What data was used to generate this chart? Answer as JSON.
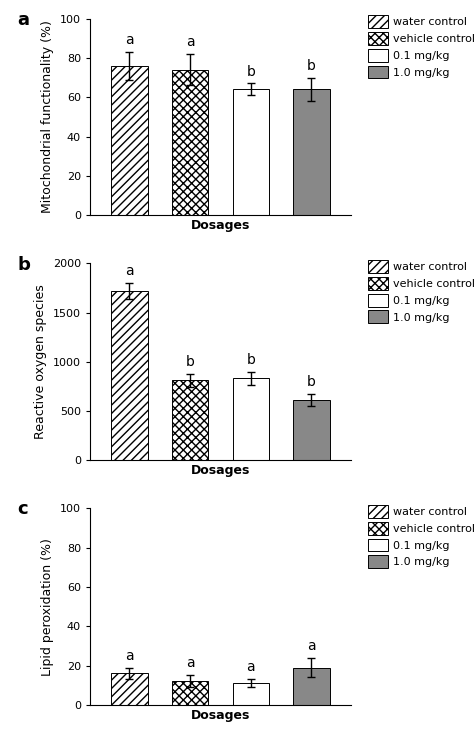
{
  "panel_a": {
    "title": "a",
    "ylabel": "Mitochondrial functionality (%)",
    "xlabel": "Dosages",
    "values": [
      76,
      74,
      64,
      64
    ],
    "errors": [
      7,
      8,
      3,
      6
    ],
    "letters": [
      "a",
      "a",
      "b",
      "b"
    ],
    "ylim": [
      0,
      100
    ],
    "yticks": [
      0,
      20,
      40,
      60,
      80,
      100
    ]
  },
  "panel_b": {
    "title": "b",
    "ylabel": "Reactive oxygen species",
    "xlabel": "Dosages",
    "values": [
      1720,
      810,
      830,
      610
    ],
    "errors": [
      80,
      70,
      70,
      60
    ],
    "letters": [
      "a",
      "b",
      "b",
      "b"
    ],
    "ylim": [
      0,
      2000
    ],
    "yticks": [
      0,
      500,
      1000,
      1500,
      2000
    ]
  },
  "panel_c": {
    "title": "c",
    "ylabel": "Lipid peroxidation (%)",
    "xlabel": "Dosages",
    "values": [
      16,
      12,
      11,
      19
    ],
    "errors": [
      3,
      3,
      2,
      5
    ],
    "letters": [
      "a",
      "a",
      "a",
      "a"
    ],
    "ylim": [
      0,
      100
    ],
    "yticks": [
      0,
      20,
      40,
      60,
      80,
      100
    ]
  },
  "bar_colors": [
    "white",
    "white",
    "white",
    "#888888"
  ],
  "legend_labels": [
    "water control",
    "vehicle control",
    "0.1 mg/kg",
    "1.0 mg/kg"
  ],
  "hatch_patterns": [
    "////",
    "xxxx",
    "",
    ""
  ],
  "bar_width": 0.6,
  "bar_positions": [
    1,
    2,
    3,
    4
  ],
  "figure_bg": "white",
  "bar_edge_color": "black",
  "error_color": "black",
  "letter_fontsize": 10,
  "axis_label_fontsize": 9,
  "tick_fontsize": 8,
  "legend_fontsize": 8,
  "title_fontsize": 13
}
